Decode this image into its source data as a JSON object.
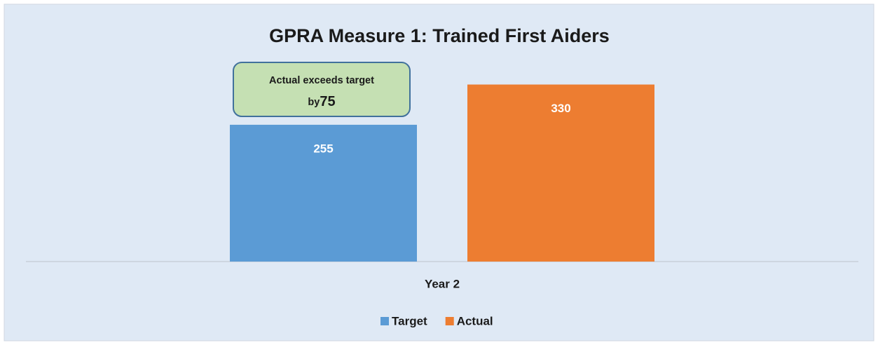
{
  "chart_data": {
    "type": "bar",
    "title": "GPRA Measure 1: Trained First Aiders",
    "categories": [
      "Year 2"
    ],
    "series": [
      {
        "name": "Target",
        "color": "#5b9bd5",
        "values": [
          255
        ]
      },
      {
        "name": "Actual",
        "color": "#ed7d31",
        "values": [
          330
        ]
      }
    ],
    "ylim": [
      0,
      400
    ],
    "annotation": {
      "lines": [
        "Actual exceeds target",
        "by"
      ],
      "value": 75
    },
    "legend": "bottom"
  }
}
